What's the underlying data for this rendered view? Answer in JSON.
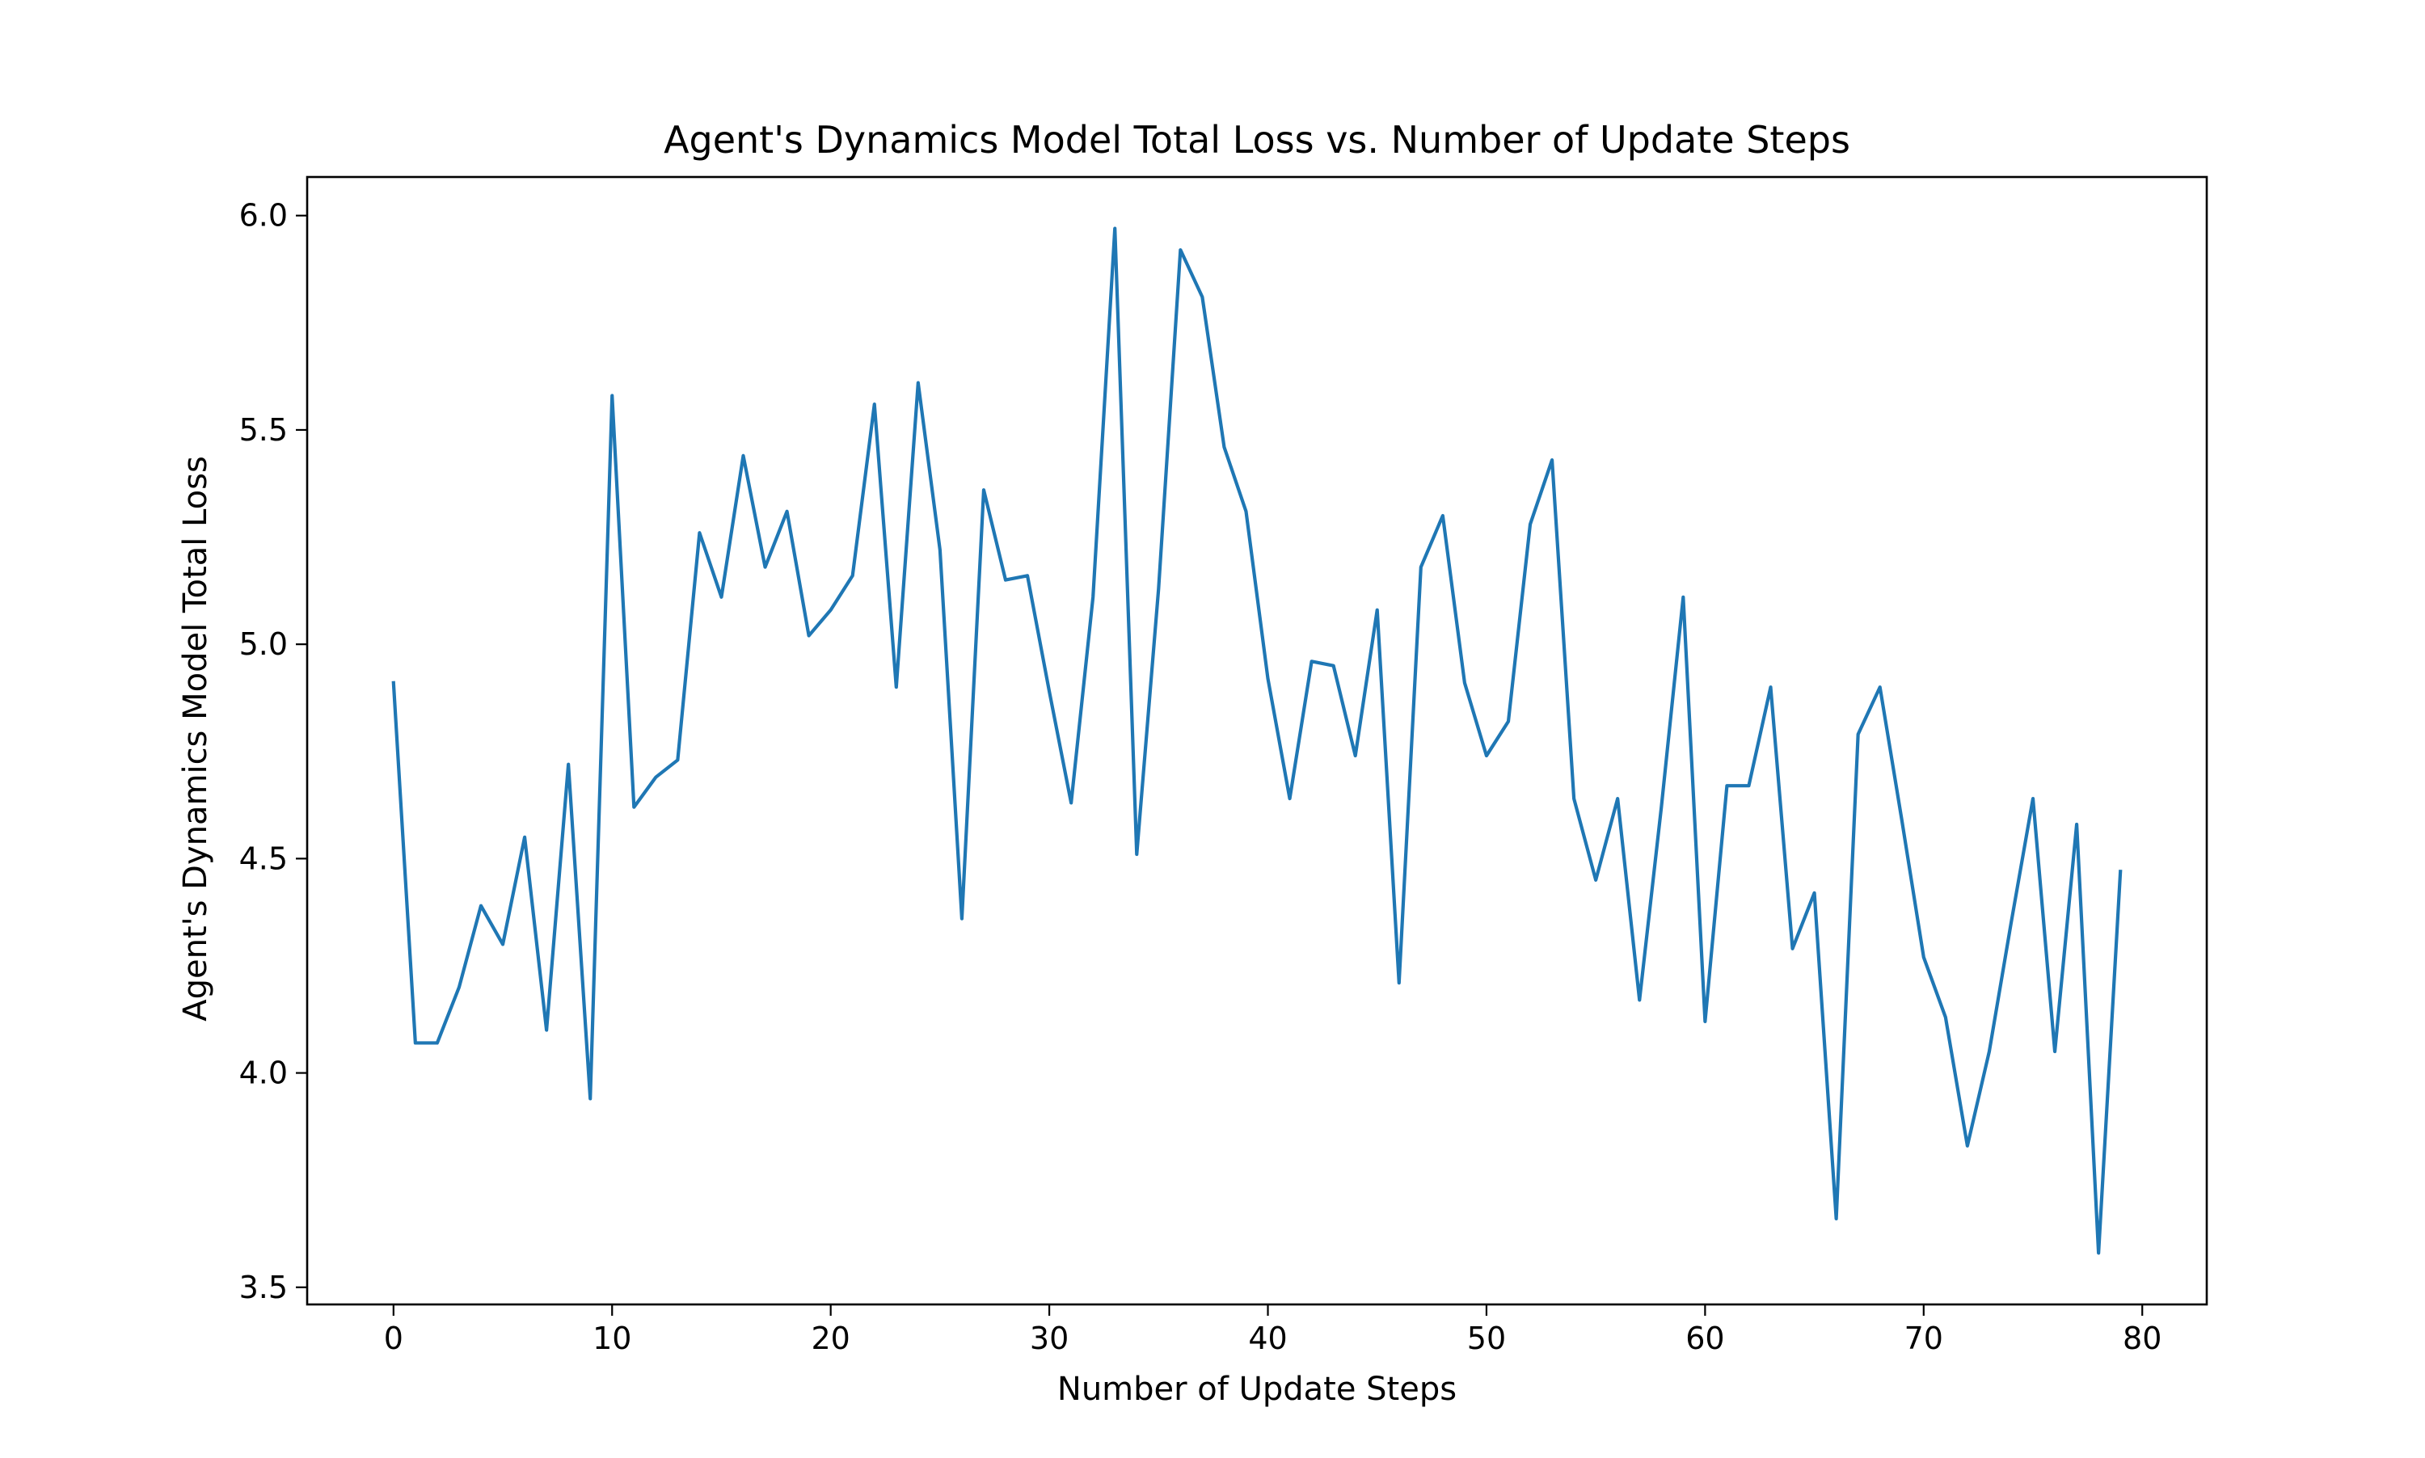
{
  "chart_data": {
    "type": "line",
    "title": "Agent's Dynamics Model Total Loss vs. Number of Update Steps",
    "xlabel": "Number of Update Steps",
    "ylabel": "Agent's Dynamics Model Total Loss",
    "xlim": [
      -3.95,
      82.95
    ],
    "ylim": [
      3.46,
      6.09
    ],
    "xticks": [
      0,
      10,
      20,
      30,
      40,
      50,
      60,
      70,
      80
    ],
    "yticks": [
      3.5,
      4.0,
      4.5,
      5.0,
      5.5,
      6.0
    ],
    "xtick_labels": [
      "0",
      "10",
      "20",
      "30",
      "40",
      "50",
      "60",
      "70",
      "80"
    ],
    "ytick_labels": [
      "3.5",
      "4.0",
      "4.5",
      "5.0",
      "5.5",
      "6.0"
    ],
    "grid": false,
    "series": [
      {
        "color": "#1f77b4",
        "x": [
          0,
          1,
          2,
          3,
          4,
          5,
          6,
          7,
          8,
          9,
          10,
          11,
          12,
          13,
          14,
          15,
          16,
          17,
          18,
          19,
          20,
          21,
          22,
          23,
          24,
          25,
          26,
          27,
          28,
          29,
          30,
          31,
          32,
          33,
          34,
          35,
          36,
          37,
          38,
          39,
          40,
          41,
          42,
          43,
          44,
          45,
          46,
          47,
          48,
          49,
          50,
          51,
          52,
          53,
          54,
          55,
          56,
          57,
          58,
          59,
          60,
          61,
          62,
          63,
          64,
          65,
          66,
          67,
          68,
          69,
          70,
          71,
          72,
          73,
          74,
          75,
          76,
          77,
          78,
          79
        ],
        "y": [
          4.91,
          4.07,
          4.07,
          4.2,
          4.39,
          4.3,
          4.55,
          4.1,
          4.72,
          3.94,
          5.58,
          4.62,
          4.69,
          4.73,
          5.26,
          5.11,
          5.44,
          5.18,
          5.31,
          5.02,
          5.08,
          5.16,
          5.56,
          4.9,
          5.61,
          5.22,
          4.36,
          5.36,
          5.15,
          5.16,
          4.89,
          4.63,
          5.11,
          5.97,
          4.51,
          5.13,
          5.92,
          5.81,
          5.46,
          5.31,
          4.92,
          4.64,
          4.96,
          4.95,
          4.74,
          5.08,
          4.21,
          5.18,
          5.3,
          4.91,
          4.74,
          4.82,
          5.28,
          5.43,
          4.64,
          4.45,
          4.64,
          4.17,
          4.62,
          5.11,
          4.12,
          4.67,
          4.67,
          4.9,
          4.29,
          4.42,
          3.66,
          4.79,
          4.9,
          4.59,
          4.27,
          4.13,
          3.83,
          4.05,
          4.35,
          4.64,
          4.05,
          4.58,
          3.58,
          4.47
        ]
      }
    ]
  }
}
